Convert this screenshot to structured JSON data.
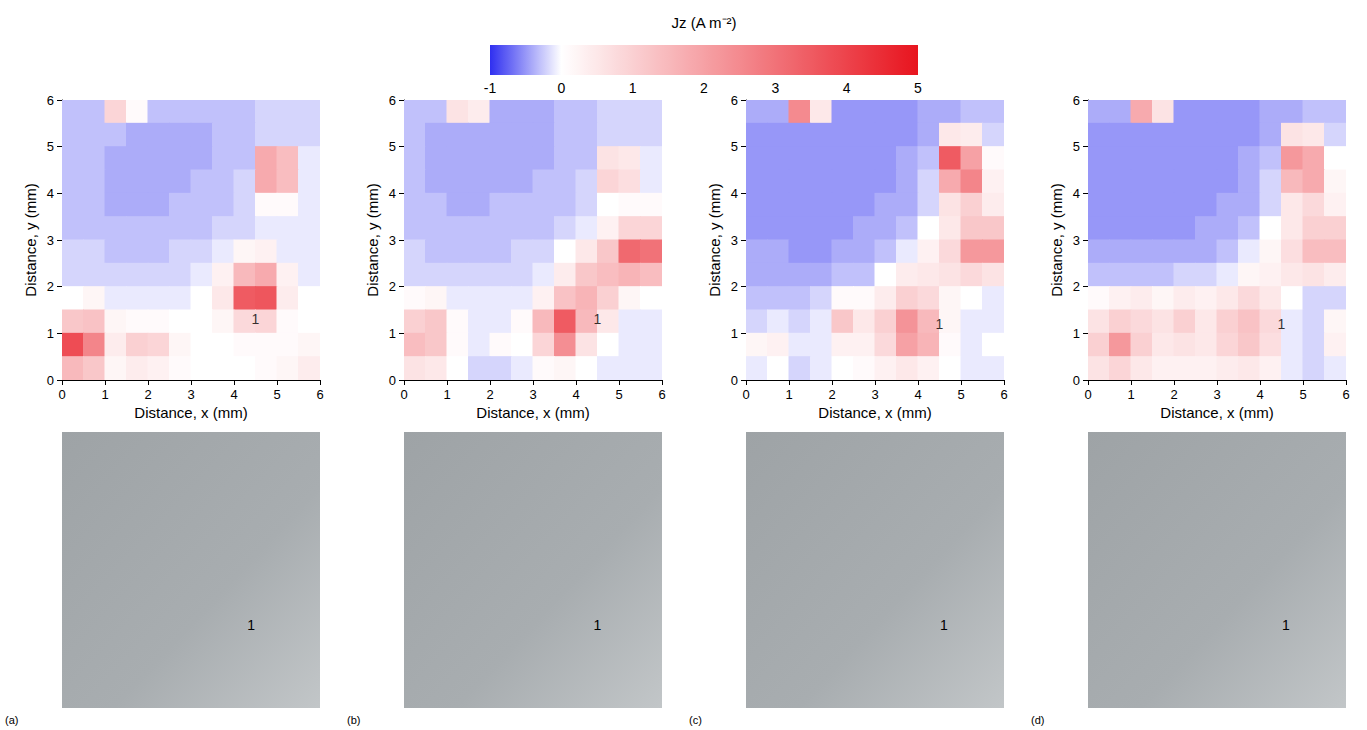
{
  "colorbar": {
    "title": "Jz (A m⁻²)",
    "range": [
      -1,
      5
    ],
    "ticks": [
      -1,
      0,
      1,
      2,
      3,
      4,
      5
    ]
  },
  "chart_data": [
    {
      "type": "heatmap",
      "panel_label": "(a)",
      "xlabel": "Distance, x (mm)",
      "ylabel": "Distance, y (mm)",
      "xlim": [
        0,
        6
      ],
      "ylim": [
        0,
        6
      ],
      "xticks": [
        0,
        1,
        2,
        3,
        4,
        5,
        6
      ],
      "yticks": [
        0,
        1,
        2,
        3,
        4,
        5,
        6
      ],
      "x": [
        0.25,
        0.75,
        1.25,
        1.75,
        2.25,
        2.75,
        3.25,
        3.75,
        4.25,
        4.75,
        5.25,
        5.75
      ],
      "y": [
        5.75,
        5.25,
        4.75,
        4.25,
        3.75,
        3.25,
        2.75,
        2.25,
        1.75,
        1.25,
        0.75,
        0.25
      ],
      "cells": [
        [
          -0.3,
          -0.3,
          0.9,
          0.1,
          -0.3,
          -0.3,
          -0.3,
          -0.3,
          -0.3,
          -0.2,
          -0.2,
          -0.2
        ],
        [
          -0.3,
          -0.3,
          -0.3,
          -0.4,
          -0.4,
          -0.4,
          -0.4,
          -0.3,
          -0.3,
          -0.2,
          -0.2,
          -0.2
        ],
        [
          -0.3,
          -0.3,
          -0.4,
          -0.4,
          -0.4,
          -0.4,
          -0.4,
          -0.3,
          -0.3,
          1.8,
          1.4,
          -0.1
        ],
        [
          -0.3,
          -0.3,
          -0.4,
          -0.4,
          -0.4,
          -0.4,
          -0.3,
          -0.3,
          -0.2,
          1.8,
          1.4,
          -0.1
        ],
        [
          -0.3,
          -0.3,
          -0.4,
          -0.4,
          -0.4,
          -0.3,
          -0.3,
          -0.3,
          -0.2,
          0.1,
          0.1,
          -0.1
        ],
        [
          -0.3,
          -0.3,
          -0.3,
          -0.3,
          -0.3,
          -0.3,
          -0.3,
          -0.2,
          -0.2,
          -0.1,
          -0.1,
          -0.1
        ],
        [
          -0.2,
          -0.2,
          -0.3,
          -0.3,
          -0.3,
          -0.2,
          -0.2,
          -0.1,
          0.2,
          0.3,
          -0.1,
          -0.1
        ],
        [
          -0.2,
          -0.2,
          -0.2,
          -0.2,
          -0.2,
          -0.2,
          -0.1,
          0.3,
          1.5,
          1.8,
          0.3,
          -0.1
        ],
        [
          0.0,
          0.2,
          -0.1,
          -0.1,
          -0.1,
          -0.1,
          0.0,
          0.5,
          3.5,
          3.6,
          0.4,
          0.0
        ],
        [
          1.2,
          1.3,
          0.2,
          0.1,
          0.1,
          0.0,
          0.0,
          0.2,
          0.8,
          0.9,
          0.1,
          0.0
        ],
        [
          3.8,
          2.6,
          0.4,
          1.0,
          0.9,
          0.2,
          0.0,
          0.0,
          0.1,
          0.1,
          0.1,
          0.2
        ],
        [
          1.5,
          1.2,
          0.2,
          0.4,
          0.3,
          0.1,
          0.0,
          0.0,
          0.0,
          0.1,
          0.2,
          0.4
        ]
      ],
      "annotations": [
        {
          "text": "1",
          "x": 4.5,
          "y": 1.3
        }
      ],
      "photo_annotations": [
        {
          "text": "1",
          "x": 4.4,
          "y": 1.8
        }
      ]
    },
    {
      "type": "heatmap",
      "panel_label": "(b)",
      "xlabel": "Distance, x (mm)",
      "ylabel": "Distance, y (mm)",
      "xlim": [
        0,
        6
      ],
      "ylim": [
        0,
        6
      ],
      "xticks": [
        0,
        1,
        2,
        3,
        4,
        5,
        6
      ],
      "yticks": [
        0,
        1,
        2,
        3,
        4,
        5,
        6
      ],
      "x": [
        0.25,
        0.75,
        1.25,
        1.75,
        2.25,
        2.75,
        3.25,
        3.75,
        4.25,
        4.75,
        5.25,
        5.75
      ],
      "y": [
        5.75,
        5.25,
        4.75,
        4.25,
        3.75,
        3.25,
        2.75,
        2.25,
        1.75,
        1.25,
        0.75,
        0.25
      ],
      "cells": [
        [
          -0.3,
          -0.3,
          0.6,
          0.4,
          -0.4,
          -0.4,
          -0.4,
          -0.3,
          -0.3,
          -0.2,
          -0.2,
          -0.2
        ],
        [
          -0.3,
          -0.4,
          -0.4,
          -0.4,
          -0.4,
          -0.4,
          -0.4,
          -0.3,
          -0.3,
          -0.2,
          -0.2,
          -0.2
        ],
        [
          -0.3,
          -0.4,
          -0.4,
          -0.4,
          -0.4,
          -0.4,
          -0.4,
          -0.3,
          -0.3,
          0.6,
          0.5,
          -0.1
        ],
        [
          -0.3,
          -0.4,
          -0.4,
          -0.4,
          -0.4,
          -0.4,
          -0.3,
          -0.3,
          -0.2,
          0.9,
          0.7,
          -0.1
        ],
        [
          -0.3,
          -0.3,
          -0.4,
          -0.4,
          -0.3,
          -0.3,
          -0.3,
          -0.3,
          -0.2,
          0.0,
          0.1,
          0.1
        ],
        [
          -0.3,
          -0.3,
          -0.3,
          -0.3,
          -0.3,
          -0.3,
          -0.3,
          -0.2,
          -0.1,
          0.3,
          0.9,
          0.9
        ],
        [
          -0.2,
          -0.3,
          -0.3,
          -0.3,
          -0.3,
          -0.2,
          -0.2,
          0.0,
          0.5,
          1.2,
          3.2,
          3.0
        ],
        [
          -0.2,
          -0.2,
          -0.2,
          -0.2,
          -0.2,
          -0.2,
          -0.1,
          0.4,
          1.2,
          1.4,
          1.6,
          1.4
        ],
        [
          0.1,
          0.2,
          -0.1,
          -0.1,
          -0.1,
          -0.1,
          0.3,
          1.3,
          1.6,
          1.0,
          0.2,
          0.0
        ],
        [
          1.0,
          1.2,
          0.1,
          -0.1,
          -0.1,
          0.1,
          1.5,
          3.5,
          1.5,
          0.5,
          -0.1,
          -0.1
        ],
        [
          1.4,
          1.2,
          0.1,
          -0.1,
          0.1,
          0.0,
          0.9,
          2.4,
          0.6,
          0.0,
          -0.1,
          -0.1
        ],
        [
          0.6,
          0.5,
          0.0,
          -0.2,
          -0.2,
          -0.1,
          0.1,
          0.2,
          0.0,
          -0.1,
          -0.1,
          -0.1
        ]
      ],
      "annotations": [
        {
          "text": "1",
          "x": 4.5,
          "y": 1.3
        }
      ],
      "photo_annotations": [
        {
          "text": "1",
          "x": 4.5,
          "y": 1.8
        }
      ]
    },
    {
      "type": "heatmap",
      "panel_label": "(c)",
      "xlabel": "Distance, x (mm)",
      "ylabel": "Distance, y (mm)",
      "xlim": [
        0,
        6
      ],
      "ylim": [
        0,
        6
      ],
      "xticks": [
        0,
        1,
        2,
        3,
        4,
        5,
        6
      ],
      "yticks": [
        0,
        1,
        2,
        3,
        4,
        5,
        6
      ],
      "x": [
        0.25,
        0.75,
        1.25,
        1.75,
        2.25,
        2.75,
        3.25,
        3.75,
        4.25,
        4.75,
        5.25,
        5.75
      ],
      "y": [
        5.75,
        5.25,
        4.75,
        4.25,
        3.75,
        3.25,
        2.75,
        2.25,
        1.75,
        1.25,
        0.75,
        0.25
      ],
      "cells": [
        [
          -0.4,
          -0.4,
          2.5,
          0.5,
          -0.5,
          -0.5,
          -0.5,
          -0.5,
          -0.4,
          -0.4,
          -0.3,
          -0.3
        ],
        [
          -0.5,
          -0.5,
          -0.5,
          -0.5,
          -0.5,
          -0.5,
          -0.5,
          -0.5,
          -0.4,
          0.5,
          0.4,
          -0.2
        ],
        [
          -0.5,
          -0.5,
          -0.5,
          -0.5,
          -0.5,
          -0.5,
          -0.5,
          -0.4,
          -0.3,
          3.5,
          2.0,
          0.1
        ],
        [
          -0.5,
          -0.5,
          -0.5,
          -0.5,
          -0.5,
          -0.5,
          -0.5,
          -0.4,
          -0.2,
          1.8,
          2.6,
          0.3
        ],
        [
          -0.5,
          -0.5,
          -0.5,
          -0.5,
          -0.5,
          -0.5,
          -0.4,
          -0.4,
          -0.2,
          0.6,
          1.0,
          0.4
        ],
        [
          -0.5,
          -0.5,
          -0.5,
          -0.5,
          -0.5,
          -0.4,
          -0.4,
          -0.3,
          0.0,
          0.5,
          1.2,
          1.2
        ],
        [
          -0.4,
          -0.4,
          -0.5,
          -0.5,
          -0.4,
          -0.4,
          -0.3,
          -0.1,
          0.3,
          0.8,
          2.2,
          2.2
        ],
        [
          -0.4,
          -0.4,
          -0.4,
          -0.4,
          -0.3,
          -0.3,
          0.0,
          0.4,
          0.5,
          0.6,
          0.8,
          0.6
        ],
        [
          -0.3,
          -0.3,
          -0.3,
          -0.2,
          0.1,
          0.1,
          0.4,
          1.0,
          0.8,
          0.2,
          0.0,
          -0.1
        ],
        [
          -0.2,
          -0.1,
          -0.2,
          -0.1,
          1.2,
          0.5,
          1.0,
          2.3,
          1.5,
          0.2,
          -0.1,
          -0.1
        ],
        [
          0.2,
          0.3,
          -0.1,
          -0.1,
          0.3,
          0.3,
          0.8,
          2.0,
          1.6,
          0.1,
          -0.1,
          0.0
        ],
        [
          -0.1,
          0.0,
          -0.2,
          -0.1,
          0.0,
          0.1,
          0.3,
          0.5,
          0.3,
          0.0,
          -0.1,
          -0.1
        ]
      ],
      "annotations": [
        {
          "text": "1",
          "x": 4.5,
          "y": 1.2
        }
      ],
      "photo_annotations": [
        {
          "text": "1",
          "x": 4.6,
          "y": 1.8
        }
      ]
    },
    {
      "type": "heatmap",
      "panel_label": "(d)",
      "xlabel": "Distance, x (mm)",
      "ylabel": "Distance, y (mm)",
      "xlim": [
        0,
        6
      ],
      "ylim": [
        0,
        6
      ],
      "xticks": [
        0,
        1,
        2,
        3,
        4,
        5,
        6
      ],
      "yticks": [
        0,
        1,
        2,
        3,
        4,
        5,
        6
      ],
      "x": [
        0.25,
        0.75,
        1.25,
        1.75,
        2.25,
        2.75,
        3.25,
        3.75,
        4.25,
        4.75,
        5.25,
        5.75
      ],
      "y": [
        5.75,
        5.25,
        4.75,
        4.25,
        3.75,
        3.25,
        2.75,
        2.25,
        1.75,
        1.25,
        0.75,
        0.25
      ],
      "cells": [
        [
          -0.4,
          -0.4,
          1.8,
          0.6,
          -0.5,
          -0.5,
          -0.5,
          -0.5,
          -0.4,
          -0.4,
          -0.3,
          -0.3
        ],
        [
          -0.5,
          -0.5,
          -0.5,
          -0.5,
          -0.5,
          -0.5,
          -0.5,
          -0.5,
          -0.4,
          0.6,
          0.5,
          -0.2
        ],
        [
          -0.5,
          -0.5,
          -0.5,
          -0.5,
          -0.5,
          -0.5,
          -0.5,
          -0.4,
          -0.3,
          2.2,
          1.8,
          0.0
        ],
        [
          -0.5,
          -0.5,
          -0.5,
          -0.5,
          -0.5,
          -0.5,
          -0.5,
          -0.4,
          -0.2,
          1.5,
          1.8,
          0.2
        ],
        [
          -0.5,
          -0.5,
          -0.5,
          -0.5,
          -0.5,
          -0.5,
          -0.4,
          -0.4,
          -0.2,
          0.5,
          0.8,
          0.3
        ],
        [
          -0.5,
          -0.5,
          -0.5,
          -0.5,
          -0.5,
          -0.4,
          -0.4,
          -0.3,
          0.0,
          0.5,
          1.0,
          1.0
        ],
        [
          -0.4,
          -0.4,
          -0.4,
          -0.4,
          -0.4,
          -0.4,
          -0.3,
          -0.1,
          0.2,
          0.7,
          1.4,
          1.4
        ],
        [
          -0.3,
          -0.3,
          -0.3,
          -0.3,
          -0.2,
          -0.2,
          -0.1,
          0.2,
          0.3,
          0.5,
          0.6,
          0.4
        ],
        [
          0.1,
          0.3,
          0.4,
          0.2,
          0.4,
          0.3,
          0.5,
          0.8,
          0.5,
          0.0,
          -0.2,
          -0.2
        ],
        [
          0.6,
          1.0,
          0.8,
          0.6,
          1.0,
          0.5,
          1.0,
          1.3,
          0.8,
          -0.1,
          -0.2,
          0.2
        ],
        [
          1.0,
          2.2,
          1.0,
          0.5,
          0.6,
          0.5,
          0.9,
          1.2,
          0.7,
          -0.1,
          -0.2,
          0.3
        ],
        [
          0.6,
          0.9,
          0.5,
          0.3,
          0.3,
          0.3,
          0.4,
          0.5,
          0.3,
          -0.1,
          -0.2,
          -0.1
        ]
      ],
      "annotations": [
        {
          "text": "1",
          "x": 4.5,
          "y": 1.2
        }
      ],
      "photo_annotations": [
        {
          "text": "1",
          "x": 4.6,
          "y": 1.8
        }
      ]
    }
  ]
}
